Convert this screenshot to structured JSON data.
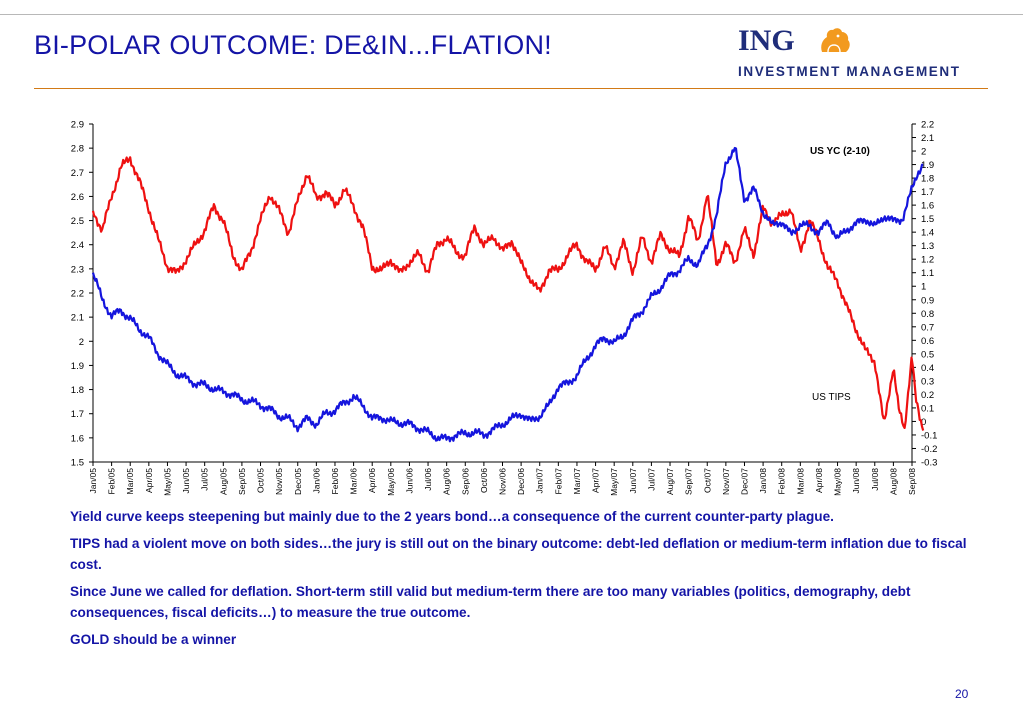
{
  "slide": {
    "title": "BI-POLAR OUTCOME: DE&IN...FLATION!",
    "page_number": "20"
  },
  "logo": {
    "brand": "ING",
    "subtitle": "INVESTMENT MANAGEMENT",
    "lion_color": "#f29a1f",
    "brand_color": "#1f2d7a"
  },
  "notes": [
    "Yield curve keeps steepening but mainly due to the 2 years bond…a consequence of the current counter-party plague.",
    "TIPS had a violent move on both sides…the jury is still out on the binary outcome: debt-led deflation or medium-term inflation due to fiscal cost.",
    "Since June we called for deflation. Short-term still valid but medium-term there are too many variables (politics, demography, debt consequences, fiscal deficits…) to measure the true outcome.",
    "GOLD should be a winner"
  ],
  "colors": {
    "title": "#1414a6",
    "accent_rule": "#d27a16",
    "tips_line": "#ee1111",
    "yc_line": "#1515dd"
  },
  "chart_data": {
    "type": "line",
    "x_tick_labels": [
      "Jan/05",
      "Feb/05",
      "Mar/05",
      "Apr/05",
      "May/05",
      "Jun/05",
      "Jul/05",
      "Aug/05",
      "Sep/05",
      "Oct/05",
      "Nov/05",
      "Dec/05",
      "Jan/06",
      "Feb/06",
      "Mar/06",
      "Apr/06",
      "May/06",
      "Jun/06",
      "Jul/06",
      "Aug/06",
      "Sep/06",
      "Oct/06",
      "Nov/06",
      "Dec/06",
      "Jan/07",
      "Feb/07",
      "Mar/07",
      "Apr/07",
      "May/07",
      "Jun/07",
      "Jul/07",
      "Aug/07",
      "Sep/07",
      "Oct/07",
      "Nov/07",
      "Dec/07",
      "Jan/08",
      "Feb/08",
      "Mar/08",
      "Apr/08",
      "May/08",
      "Jun/08",
      "Jul/08",
      "Aug/08",
      "Sep/08"
    ],
    "left_axis": {
      "ylim": [
        1.5,
        2.9
      ],
      "ticks": [
        "1.5",
        "1.6",
        "1.7",
        "1.8",
        "1.9",
        "2",
        "2.1",
        "2.2",
        "2.3",
        "2.4",
        "2.5",
        "2.6",
        "2.7",
        "2.8",
        "2.9"
      ]
    },
    "right_axis": {
      "ylim": [
        -0.3,
        2.2
      ],
      "ticks": [
        "-0.3",
        "-0.2",
        "-0.1",
        "0",
        "0.1",
        "0.2",
        "0.3",
        "0.4",
        "0.5",
        "0.6",
        "0.7",
        "0.8",
        "0.9",
        "1",
        "1.1",
        "1.2",
        "1.3",
        "1.4",
        "1.5",
        "1.6",
        "1.7",
        "1.8",
        "1.9",
        "2",
        "2.1",
        "2.2"
      ]
    },
    "series": [
      {
        "name": "US TIPS",
        "axis": "left",
        "color": "#ee1111",
        "x": [
          0,
          0.5,
          1,
          1.5,
          2,
          2.5,
          3,
          3.5,
          4,
          4.5,
          5,
          5.5,
          6,
          6.5,
          7,
          7.5,
          8,
          8.5,
          9,
          9.5,
          10,
          10.5,
          11,
          11.5,
          12,
          12.5,
          13,
          13.5,
          14,
          14.5,
          15,
          15.5,
          16,
          16.5,
          17,
          17.5,
          18,
          18.5,
          19,
          19.5,
          20,
          20.5,
          21,
          21.5,
          22,
          22.5,
          23,
          23.5,
          24,
          24.5,
          25,
          25.5,
          26,
          26.5,
          27,
          27.5,
          28,
          28.5,
          29,
          29.5,
          30,
          30.5,
          31,
          31.5,
          32,
          32.5,
          33,
          33.5,
          34,
          34.5,
          35,
          35.5,
          36,
          36.5,
          37,
          37.5,
          38,
          38.5,
          39,
          39.5,
          40,
          40.5,
          41,
          41.5,
          42,
          42.5,
          43,
          43.3,
          43.6,
          43.8,
          44,
          44.2,
          44.4,
          44.6
        ],
        "values": [
          2.54,
          2.46,
          2.6,
          2.72,
          2.76,
          2.66,
          2.55,
          2.42,
          2.31,
          2.28,
          2.34,
          2.4,
          2.46,
          2.56,
          2.5,
          2.36,
          2.29,
          2.38,
          2.5,
          2.61,
          2.54,
          2.45,
          2.58,
          2.7,
          2.59,
          2.62,
          2.56,
          2.63,
          2.56,
          2.47,
          2.31,
          2.29,
          2.34,
          2.28,
          2.33,
          2.36,
          2.29,
          2.4,
          2.43,
          2.37,
          2.35,
          2.48,
          2.39,
          2.44,
          2.37,
          2.42,
          2.32,
          2.26,
          2.2,
          2.3,
          2.29,
          2.36,
          2.4,
          2.33,
          2.3,
          2.39,
          2.31,
          2.41,
          2.29,
          2.43,
          2.33,
          2.44,
          2.38,
          2.35,
          2.52,
          2.41,
          2.61,
          2.32,
          2.4,
          2.33,
          2.46,
          2.36,
          2.55,
          2.49,
          2.52,
          2.55,
          2.37,
          2.5,
          2.42,
          2.3,
          2.25,
          2.14,
          2.05,
          1.96,
          1.92,
          1.65,
          1.9,
          1.71,
          1.63,
          1.8,
          1.95,
          1.76,
          1.68,
          1.63
        ]
      },
      {
        "name": "US YC (2-10)",
        "axis": "right",
        "color": "#1515dd",
        "x": [
          0,
          0.5,
          1,
          1.5,
          2,
          2.5,
          3,
          3.5,
          4,
          4.5,
          5,
          5.5,
          6,
          6.5,
          7,
          7.5,
          8,
          8.5,
          9,
          9.5,
          10,
          10.5,
          11,
          11.5,
          12,
          12.5,
          13,
          13.5,
          14,
          14.5,
          15,
          15.5,
          16,
          16.5,
          17,
          17.5,
          18,
          18.5,
          19,
          19.5,
          20,
          20.5,
          21,
          21.5,
          22,
          22.5,
          23,
          23.5,
          24,
          24.5,
          25,
          25.5,
          26,
          26.5,
          27,
          27.5,
          28,
          28.5,
          29,
          29.5,
          30,
          30.5,
          31,
          31.5,
          32,
          32.5,
          33,
          33.5,
          34,
          34.5,
          35,
          35.5,
          36,
          36.5,
          37,
          37.5,
          38,
          38.5,
          39,
          39.5,
          40,
          40.5,
          41,
          41.5,
          42,
          42.5,
          43,
          43.5,
          44,
          44.3,
          44.6
        ],
        "values": [
          1.1,
          0.9,
          0.78,
          0.82,
          0.76,
          0.68,
          0.62,
          0.5,
          0.42,
          0.35,
          0.32,
          0.28,
          0.27,
          0.24,
          0.22,
          0.2,
          0.16,
          0.15,
          0.12,
          0.09,
          0.04,
          0.02,
          -0.04,
          0.02,
          -0.02,
          0.06,
          0.08,
          0.14,
          0.18,
          0.12,
          0.02,
          0.03,
          0.0,
          -0.01,
          -0.02,
          -0.05,
          -0.08,
          -0.12,
          -0.13,
          -0.1,
          -0.09,
          -0.08,
          -0.1,
          -0.06,
          -0.02,
          0.02,
          0.06,
          0.0,
          0.04,
          0.12,
          0.26,
          0.28,
          0.34,
          0.46,
          0.56,
          0.62,
          0.58,
          0.64,
          0.75,
          0.82,
          0.92,
          0.99,
          1.08,
          1.12,
          1.2,
          1.16,
          1.3,
          1.52,
          1.92,
          2.02,
          1.64,
          1.72,
          1.55,
          1.45,
          1.48,
          1.38,
          1.46,
          1.44,
          1.4,
          1.48,
          1.35,
          1.42,
          1.46,
          1.5,
          1.44,
          1.52,
          1.48,
          1.5,
          1.72,
          1.84,
          1.9
        ]
      }
    ],
    "annotations": [
      "US YC (2-10)",
      "US TIPS"
    ],
    "grid": false,
    "legend": "none"
  }
}
